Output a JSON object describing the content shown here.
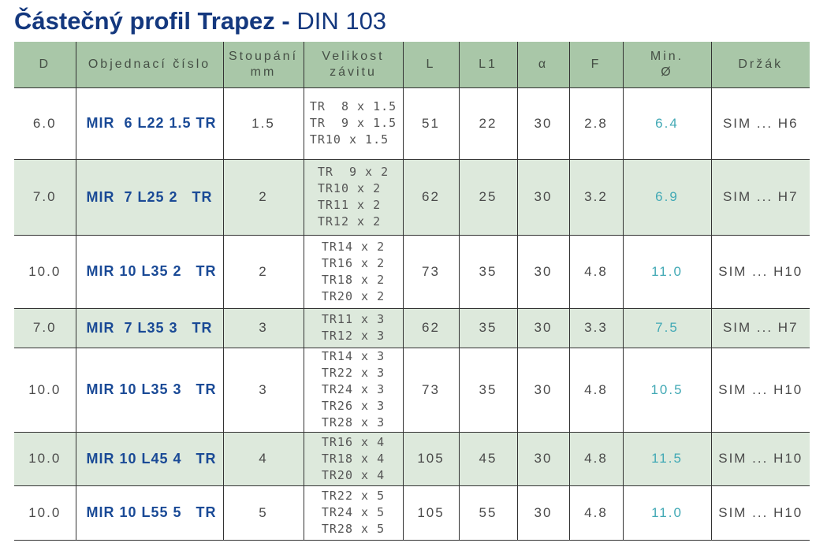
{
  "title": {
    "main": "Částečný profil Trapez - ",
    "standard": "DIN 103"
  },
  "colors": {
    "title-navy": "#14387e",
    "order-blue": "#1a4a96",
    "min-teal": "#42a9b5",
    "header-green": "#a9c7a8",
    "row-green": "#dde9dc"
  },
  "table": {
    "headers": [
      {
        "label": "D"
      },
      {
        "label": "Objednací číslo"
      },
      {
        "label": "Stoupání",
        "sub": "mm"
      },
      {
        "label": "Velikost",
        "sub": "závitu"
      },
      {
        "label": "L"
      },
      {
        "label": "L1"
      },
      {
        "label": "α"
      },
      {
        "label": "F"
      },
      {
        "label": "Min.",
        "sub": "Ø"
      },
      {
        "label": "Držák"
      }
    ],
    "rows": [
      {
        "d": "6.0",
        "order": "MIR  6 L22 1.5 TR",
        "pitch": "1.5",
        "threads": [
          "TR  8 x 1.5",
          "TR  9 x 1.5",
          "TR10 x 1.5"
        ],
        "l": "51",
        "l1": "22",
        "alpha": "30",
        "f": "2.8",
        "min_dia": "6.4",
        "holder": "SIM ... H6"
      },
      {
        "d": "7.0",
        "order": "MIR  7 L25 2   TR",
        "pitch": "2",
        "threads": [
          "TR  9 x 2",
          "TR10 x 2",
          "TR11 x 2",
          "TR12 x 2"
        ],
        "l": "62",
        "l1": "25",
        "alpha": "30",
        "f": "3.2",
        "min_dia": "6.9",
        "holder": "SIM ... H7"
      },
      {
        "d": "10.0",
        "order": "MIR 10 L35 2   TR",
        "pitch": "2",
        "threads": [
          "TR14 x 2",
          "TR16 x 2",
          "TR18 x 2",
          "TR20 x 2"
        ],
        "l": "73",
        "l1": "35",
        "alpha": "30",
        "f": "4.8",
        "min_dia": "11.0",
        "holder": "SIM ... H10"
      },
      {
        "d": "7.0",
        "order": "MIR  7 L35 3   TR",
        "pitch": "3",
        "threads": [
          "TR11 x 3",
          "TR12 x 3"
        ],
        "l": "62",
        "l1": "35",
        "alpha": "30",
        "f": "3.3",
        "min_dia": "7.5",
        "holder": "SIM ... H7"
      },
      {
        "d": "10.0",
        "order": "MIR 10 L35 3   TR",
        "pitch": "3",
        "threads": [
          "TR14 x 3",
          "TR22 x 3",
          "TR24 x 3",
          "TR26 x 3",
          "TR28 x 3"
        ],
        "l": "73",
        "l1": "35",
        "alpha": "30",
        "f": "4.8",
        "min_dia": "10.5",
        "holder": "SIM ... H10"
      },
      {
        "d": "10.0",
        "order": "MIR 10 L45 4   TR",
        "pitch": "4",
        "threads": [
          "TR16 x 4",
          "TR18 x 4",
          "TR20 x 4"
        ],
        "l": "105",
        "l1": "45",
        "alpha": "30",
        "f": "4.8",
        "min_dia": "11.5",
        "holder": "SIM ... H10"
      },
      {
        "d": "10.0",
        "order": "MIR 10 L55 5   TR",
        "pitch": "5",
        "threads": [
          "TR22 x 5",
          "TR24 x 5",
          "TR28 x 5"
        ],
        "l": "105",
        "l1": "55",
        "alpha": "30",
        "f": "4.8",
        "min_dia": "11.0",
        "holder": "SIM ... H10"
      }
    ]
  }
}
